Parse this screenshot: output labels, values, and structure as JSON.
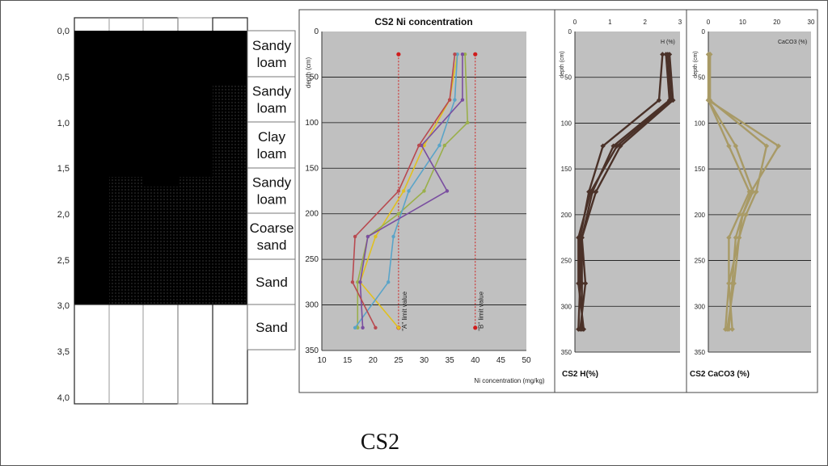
{
  "colors": {
    "panel_bg": "#c0c0c0",
    "limit_line": "#d01c1c",
    "h_series": "#4a3128",
    "caco3_series": "#a89a66",
    "ni_series": [
      "#e0c020",
      "#9aaf4a",
      "#5aa4c8",
      "#7a4ea0",
      "#b84a50"
    ]
  },
  "profile": {
    "depth_ticks": [
      "0,0",
      "0,5",
      "1,0",
      "1,5",
      "2,0",
      "2,5",
      "3,0",
      "3,5",
      "4,0"
    ],
    "layers": [
      {
        "label": "Sandy\nloam"
      },
      {
        "label": "Sandy\nloam"
      },
      {
        "label": "Clay\nloam"
      },
      {
        "label": "Sandy\nloam"
      },
      {
        "label": "Coarse\nsand"
      },
      {
        "label": "Sand"
      },
      {
        "label": "Sand"
      }
    ]
  },
  "chart_data": [
    {
      "type": "line",
      "title": "CS2 Ni concentration",
      "xlabel": "Ni concentration (mg/kg)",
      "ylabel": "depth (cm)",
      "xlim": [
        10,
        50
      ],
      "ylim": [
        0,
        350
      ],
      "y_inverted": true,
      "x_axis_position": "bottom",
      "x_ticks": [
        10,
        15,
        20,
        25,
        30,
        35,
        40,
        45,
        50
      ],
      "y_ticks": [
        0,
        50,
        100,
        150,
        200,
        250,
        300,
        350
      ],
      "grid": "horizontal",
      "series": [
        {
          "values": [
            [
              36.5,
              25
            ],
            [
              35,
              75
            ],
            [
              30,
              125
            ],
            [
              26,
              175
            ],
            [
              20.5,
              225
            ],
            [
              17.5,
              275
            ],
            [
              25,
              325
            ]
          ]
        },
        {
          "values": [
            [
              38,
              25
            ],
            [
              38.5,
              100
            ],
            [
              34,
              125
            ],
            [
              30,
              175
            ],
            [
              25,
              200
            ],
            [
              19,
              225
            ],
            [
              17,
              275
            ],
            [
              17,
              325
            ]
          ]
        },
        {
          "values": [
            [
              36.5,
              25
            ],
            [
              36,
              75
            ],
            [
              33,
              125
            ],
            [
              27,
              175
            ],
            [
              24,
              225
            ],
            [
              23,
              275
            ],
            [
              16.5,
              325
            ]
          ]
        },
        {
          "values": [
            [
              37.5,
              25
            ],
            [
              37.5,
              75
            ],
            [
              29.5,
              125
            ],
            [
              34.5,
              175
            ],
            [
              19,
              225
            ],
            [
              17.5,
              275
            ],
            [
              18,
              325
            ]
          ]
        },
        {
          "values": [
            [
              36,
              25
            ],
            [
              35,
              75
            ],
            [
              29,
              125
            ],
            [
              25,
              175
            ],
            [
              16.5,
              225
            ],
            [
              16,
              275
            ],
            [
              20.5,
              325
            ]
          ]
        }
      ],
      "limits": [
        {
          "label": "\"A\" limit value",
          "x": 25,
          "y_top": 25,
          "y_bottom": 325
        },
        {
          "label": "\"B\" limit value",
          "x": 40,
          "y_top": 25,
          "y_bottom": 325
        }
      ]
    },
    {
      "type": "line",
      "title": "CS2 H(%)",
      "legend": "H (%)",
      "xlim": [
        0,
        3
      ],
      "ylim": [
        0,
        350
      ],
      "y_inverted": true,
      "x_axis_position": "top",
      "x_ticks": [
        0,
        1,
        2,
        3
      ],
      "y_ticks": [
        0,
        50,
        100,
        150,
        200,
        250,
        300,
        350
      ],
      "grid": "horizontal",
      "series": [
        {
          "values": [
            [
              2.5,
              25
            ],
            [
              2.4,
              75
            ],
            [
              0.8,
              125
            ],
            [
              0.4,
              175
            ],
            [
              0.15,
              225
            ],
            [
              0.15,
              275
            ],
            [
              0.1,
              325
            ]
          ]
        },
        {
          "values": [
            [
              2.6,
              25
            ],
            [
              2.7,
              75
            ],
            [
              1.1,
              125
            ],
            [
              0.5,
              175
            ],
            [
              0.2,
              225
            ],
            [
              0.2,
              275
            ],
            [
              0.2,
              325
            ]
          ]
        },
        {
          "values": [
            [
              2.7,
              25
            ],
            [
              2.8,
              75
            ],
            [
              1.3,
              125
            ],
            [
              0.6,
              175
            ],
            [
              0.2,
              225
            ],
            [
              0.3,
              275
            ],
            [
              0.15,
              325
            ]
          ]
        },
        {
          "values": [
            [
              2.65,
              25
            ],
            [
              2.75,
              75
            ],
            [
              1.2,
              125
            ],
            [
              0.45,
              175
            ],
            [
              0.1,
              225
            ],
            [
              0.1,
              275
            ],
            [
              0.25,
              325
            ]
          ]
        }
      ]
    },
    {
      "type": "line",
      "title": "CS2 CaCO3 (%)",
      "legend": "CaCO3 (%)",
      "xlim": [
        0,
        30
      ],
      "ylim": [
        0,
        350
      ],
      "y_inverted": true,
      "x_axis_position": "top",
      "x_ticks": [
        0,
        10,
        20,
        30
      ],
      "y_ticks": [
        0,
        50,
        100,
        150,
        200,
        250,
        300,
        350
      ],
      "grid": "horizontal",
      "series": [
        {
          "values": [
            [
              0.5,
              25
            ],
            [
              0,
              75
            ],
            [
              6,
              125
            ],
            [
              12,
              175
            ],
            [
              9,
              200
            ],
            [
              6,
              225
            ],
            [
              6,
              275
            ],
            [
              5,
              325
            ]
          ]
        },
        {
          "values": [
            [
              0.5,
              25
            ],
            [
              0.5,
              75
            ],
            [
              17,
              125
            ],
            [
              14,
              175
            ],
            [
              11,
              200
            ],
            [
              9,
              225
            ],
            [
              6,
              275
            ],
            [
              7,
              325
            ]
          ]
        },
        {
          "values": [
            [
              0,
              25
            ],
            [
              0,
              75
            ],
            [
              20.5,
              125
            ],
            [
              12.5,
              175
            ],
            [
              10,
              200
            ],
            [
              8,
              225
            ],
            [
              7,
              275
            ],
            [
              6,
              325
            ]
          ]
        },
        {
          "values": [
            [
              0.5,
              25
            ],
            [
              0,
              75
            ],
            [
              8,
              125
            ],
            [
              13,
              175
            ],
            [
              10,
              200
            ],
            [
              9,
              225
            ],
            [
              7.5,
              275
            ],
            [
              5.5,
              325
            ]
          ]
        }
      ]
    }
  ],
  "caption": "CS2"
}
